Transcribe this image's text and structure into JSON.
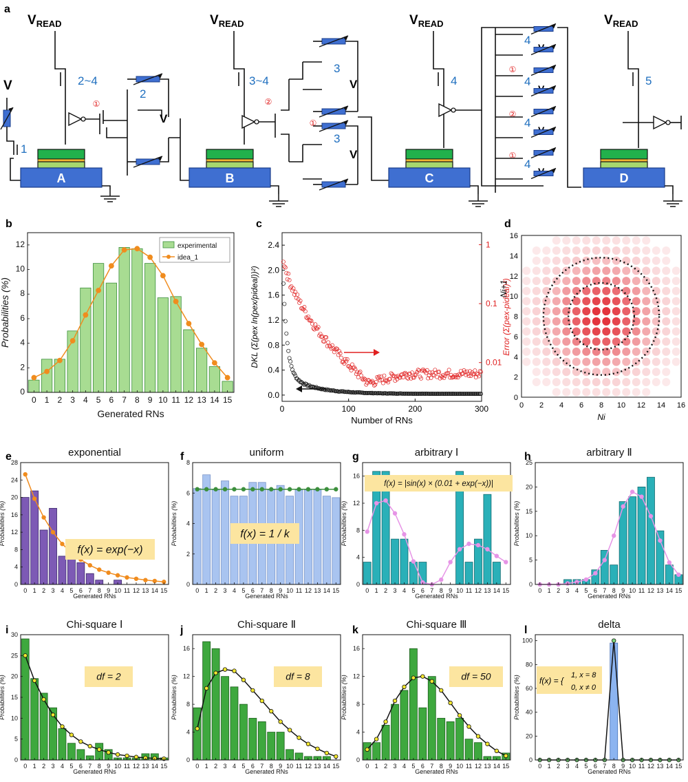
{
  "circuit": {
    "panel_letter": "a",
    "v_read": "V",
    "v_read_sub": "READ",
    "v_label": "V",
    "blocks": [
      "A",
      "B",
      "C",
      "D"
    ],
    "transistor_labels": [
      "1",
      "2~4",
      "2",
      "3~4",
      "3",
      "3",
      "4",
      "4",
      "4",
      "4",
      "4",
      "5"
    ],
    "node_markers": [
      "①",
      "②",
      "①",
      "①",
      "②",
      "①"
    ],
    "colors": {
      "block": "#3f6fd1",
      "stack_top": "#22b14c",
      "stack_mid": "#f2b632",
      "stack_low": "#a7d86e",
      "label_blue": "#1f6fbf",
      "marker_red": "#e02020"
    }
  },
  "chart_data": [
    {
      "id": "b",
      "type": "bar",
      "panel_letter": "b",
      "categories": [
        "0",
        "1",
        "2",
        "3",
        "4",
        "5",
        "6",
        "7",
        "8",
        "9",
        "10",
        "11",
        "12",
        "13",
        "14",
        "15"
      ],
      "series": [
        {
          "name": "experimental",
          "kind": "bar",
          "values": [
            1.0,
            2.7,
            2.7,
            5.0,
            8.5,
            10.5,
            8.9,
            11.8,
            11.7,
            10.5,
            7.7,
            7.8,
            5.1,
            3.6,
            2.1,
            0.9
          ]
        },
        {
          "name": "idea_1",
          "kind": "line",
          "values": [
            1.2,
            1.7,
            2.6,
            4.2,
            6.3,
            8.3,
            10.3,
            11.6,
            11.7,
            11.0,
            9.5,
            7.4,
            5.6,
            3.9,
            2.4,
            1.2
          ]
        }
      ],
      "xlabel": "Generated RNs",
      "ylabel": "Probabilities (%)",
      "ylim": [
        0,
        13
      ],
      "yticks": [
        "0",
        "2",
        "4",
        "6",
        "8",
        "10",
        "12"
      ],
      "legend": "top-right",
      "colors": {
        "bar": "#a8dc92",
        "bar_edge": "#3c8f3c",
        "line": "#f08c1e"
      }
    },
    {
      "id": "c",
      "type": "scatter",
      "panel_letter": "c",
      "xlabel": "Number of RNs",
      "ylabel_left": "DKL (Σ(pex ln(pex/pideal))²)",
      "ylabel_right": "Error (Σ(pex-pideal)²)",
      "xlim": [
        0,
        300
      ],
      "xticks": [
        "0",
        "100",
        "200",
        "300"
      ],
      "ylim_left": [
        -0.1,
        2.6
      ],
      "yticks_left": [
        "0.0",
        "0.4",
        "0.8",
        "1.2",
        "1.6",
        "2.0",
        "2.4"
      ],
      "yscale_right": "log",
      "yticks_right": [
        "0.01",
        "0.1",
        "1"
      ],
      "series": [
        {
          "name": "DKL",
          "axis": "left",
          "color": "#111111",
          "decay": {
            "a0": 2.0,
            "tau": 6,
            "a1": 0.35,
            "tau1": 40,
            "floor": 0.02
          }
        },
        {
          "name": "Error",
          "axis": "right",
          "color": "#e02020",
          "decay": {
            "start": 1.0,
            "plateau_min": 0.0045,
            "plateau": 0.0065
          }
        }
      ]
    },
    {
      "id": "d",
      "type": "heatmap",
      "panel_letter": "d",
      "xlabel": "Ni",
      "ylabel": "Ni+1",
      "xlim": [
        0,
        16
      ],
      "ylim": [
        0,
        16
      ],
      "xticks": [
        "0",
        "2",
        "4",
        "6",
        "8",
        "10",
        "12",
        "14",
        "16"
      ],
      "yticks": [
        "0",
        "2",
        "4",
        "6",
        "8",
        "10",
        "12",
        "14",
        "16"
      ],
      "center": [
        7.5,
        7.5
      ],
      "circle_radii": [
        3.3,
        5.8
      ],
      "color": "#e0202a"
    },
    {
      "id": "e",
      "type": "bar",
      "panel_letter": "e",
      "title": "exponential",
      "categories": [
        "0",
        "1",
        "2",
        "3",
        "4",
        "5",
        "6",
        "7",
        "8",
        "9",
        "10",
        "11",
        "12",
        "13",
        "14",
        "15"
      ],
      "series": [
        {
          "name": "",
          "kind": "bar",
          "values": [
            20,
            21.5,
            12.5,
            17.5,
            6.5,
            6.5,
            5,
            2.5,
            1,
            0,
            1,
            0,
            0,
            0,
            0,
            0
          ]
        },
        {
          "name": "",
          "kind": "line",
          "values": [
            25.3,
            19.7,
            15.4,
            12,
            9.3,
            7.3,
            5.7,
            4.4,
            3.4,
            2.7,
            2.1,
            1.6,
            1.3,
            1,
            0.8,
            0.6
          ]
        }
      ],
      "xlabel": "Generated RNs",
      "ylabel": "Probabilities (%)",
      "ylim": [
        0,
        28
      ],
      "yticks": [
        "0",
        "4",
        "8",
        "12",
        "16",
        "20",
        "24",
        "28"
      ],
      "formula": "f(x) = exp(−x)",
      "colors": {
        "bar": "#7d5ab5",
        "bar_edge": "#3d2a6b",
        "line": "#f08c1e"
      }
    },
    {
      "id": "f",
      "type": "bar",
      "panel_letter": "f",
      "title": "uniform",
      "categories": [
        "0",
        "1",
        "2",
        "3",
        "4",
        "5",
        "6",
        "7",
        "8",
        "9",
        "10",
        "11",
        "12",
        "13",
        "14",
        "15"
      ],
      "series": [
        {
          "name": "",
          "kind": "bar",
          "values": [
            6.3,
            7.2,
            6.2,
            6.8,
            5.8,
            5.8,
            6.7,
            6.7,
            6.2,
            6.5,
            5.8,
            6.2,
            6.2,
            6.2,
            5.8,
            5.7
          ]
        },
        {
          "name": "",
          "kind": "line",
          "values": [
            6.25,
            6.25,
            6.25,
            6.25,
            6.25,
            6.25,
            6.25,
            6.25,
            6.25,
            6.25,
            6.25,
            6.25,
            6.25,
            6.25,
            6.25,
            6.25
          ]
        }
      ],
      "xlabel": "Generated RNs",
      "ylabel": "Probabilities (%)",
      "ylim": [
        0,
        8
      ],
      "yticks": [
        "0",
        "2",
        "4",
        "6",
        "8"
      ],
      "formula": "f(x) = 1 / k",
      "colors": {
        "bar": "#a9c4f0",
        "bar_edge": "#7a95c8",
        "line": "#3c8f3c"
      }
    },
    {
      "id": "g",
      "type": "bar",
      "panel_letter": "g",
      "title": "arbitrary Ⅰ",
      "categories": [
        "0",
        "1",
        "2",
        "3",
        "4",
        "5",
        "6",
        "7",
        "8",
        "9",
        "10",
        "11",
        "12",
        "13",
        "14",
        "15"
      ],
      "series": [
        {
          "name": "",
          "kind": "bar",
          "values": [
            3.3,
            16.7,
            16.7,
            6.7,
            6.7,
            3.3,
            3.3,
            0,
            0,
            0,
            16.7,
            3.3,
            6.7,
            13.3,
            3.3,
            0
          ]
        },
        {
          "name": "",
          "kind": "line",
          "values": [
            7.8,
            12,
            12.4,
            10.5,
            7.4,
            3.4,
            0.3,
            0,
            0.7,
            3.3,
            5.2,
            6,
            5.8,
            5.2,
            4.2,
            3.3
          ]
        }
      ],
      "xlabel": "Generated RNs",
      "ylabel": "Probabilities (%)",
      "ylim": [
        0,
        18
      ],
      "yticks": [
        "0",
        "4",
        "8",
        "12",
        "16"
      ],
      "formula": "f(x) = |sin(x) × (0.01 + exp(−x))|",
      "colors": {
        "bar": "#2ab0b8",
        "bar_edge": "#136b70",
        "line": "#e694e6"
      }
    },
    {
      "id": "h",
      "type": "bar",
      "panel_letter": "h",
      "title": "arbitrary Ⅱ",
      "categories": [
        "0",
        "1",
        "2",
        "3",
        "4",
        "5",
        "6",
        "7",
        "8",
        "9",
        "10",
        "11",
        "12",
        "13",
        "14",
        "15"
      ],
      "series": [
        {
          "name": "",
          "kind": "bar",
          "values": [
            0,
            0,
            0,
            1,
            1,
            1,
            3,
            7,
            4,
            17,
            18,
            20,
            22,
            11,
            4,
            2
          ]
        },
        {
          "name": "",
          "kind": "line",
          "values": [
            0,
            0,
            0,
            0.2,
            0.5,
            1,
            2.3,
            5,
            10,
            16,
            19,
            18,
            14,
            9,
            4.5,
            2
          ]
        }
      ],
      "xlabel": "Generated RNs",
      "ylabel": "Probabilities (%)",
      "ylim": [
        0,
        25
      ],
      "yticks": [
        "0",
        "5",
        "10",
        "15",
        "20",
        "25"
      ],
      "colors": {
        "bar": "#2ab0b8",
        "bar_edge": "#136b70",
        "line": "#e694e6"
      }
    },
    {
      "id": "i",
      "type": "bar",
      "panel_letter": "i",
      "title": "Chi-square Ⅰ",
      "categories": [
        "0",
        "1",
        "2",
        "3",
        "4",
        "5",
        "6",
        "7",
        "8",
        "9",
        "10",
        "11",
        "12",
        "13",
        "14",
        "15"
      ],
      "series": [
        {
          "name": "",
          "kind": "bar",
          "values": [
            29,
            19.5,
            16,
            12.5,
            7.5,
            4,
            2.5,
            1,
            4,
            2.5,
            0.5,
            0.5,
            0.5,
            1.5,
            1.5,
            0.5
          ]
        },
        {
          "name": "",
          "kind": "line",
          "values": [
            25,
            19,
            14.5,
            10.8,
            8,
            6,
            4.4,
            3.3,
            2.5,
            1.8,
            1.3,
            1,
            0.7,
            0.5,
            0.4,
            0.3
          ]
        }
      ],
      "xlabel": "Generated RNs",
      "ylabel": "Probabilities (%)",
      "ylim": [
        0,
        30
      ],
      "yticks": [
        "0",
        "5",
        "10",
        "15",
        "20",
        "25",
        "30"
      ],
      "formula": "df = 2",
      "colors": {
        "bar": "#3ea83e",
        "bar_edge": "#1d5e1d",
        "line": "#111111",
        "marker": "#f2e630"
      }
    },
    {
      "id": "j",
      "type": "bar",
      "panel_letter": "j",
      "title": "Chi-square Ⅱ",
      "categories": [
        "0",
        "1",
        "2",
        "3",
        "4",
        "5",
        "6",
        "7",
        "8",
        "9",
        "10",
        "11",
        "12",
        "13",
        "14",
        "15"
      ],
      "series": [
        {
          "name": "",
          "kind": "bar",
          "values": [
            7.5,
            17,
            16,
            12,
            10.5,
            8,
            6,
            5.5,
            4,
            4,
            1.5,
            1,
            0.5,
            0.5,
            0.5,
            0
          ]
        },
        {
          "name": "",
          "kind": "line",
          "values": [
            4.5,
            10.3,
            12.5,
            13,
            12.8,
            11.5,
            10,
            8.5,
            7,
            5.5,
            4.3,
            3.2,
            2.3,
            1.6,
            1,
            0.5
          ]
        }
      ],
      "xlabel": "Generated RNs",
      "ylabel": "Probabilities (%)",
      "ylim": [
        0,
        18
      ],
      "yticks": [
        "0",
        "4",
        "8",
        "12",
        "16"
      ],
      "formula": "df = 8",
      "colors": {
        "bar": "#3ea83e",
        "bar_edge": "#1d5e1d",
        "line": "#111111",
        "marker": "#f2e630"
      }
    },
    {
      "id": "k",
      "type": "bar",
      "panel_letter": "k",
      "title": "Chi-square Ⅲ",
      "categories": [
        "0",
        "1",
        "2",
        "3",
        "4",
        "5",
        "6",
        "7",
        "8",
        "9",
        "10",
        "11",
        "12",
        "13",
        "14",
        "15"
      ],
      "series": [
        {
          "name": "",
          "kind": "bar",
          "values": [
            2.5,
            2.5,
            5,
            8,
            10,
            16,
            7.5,
            12,
            6,
            5.5,
            6,
            3,
            2.5,
            0.5,
            0.5,
            1
          ]
        },
        {
          "name": "",
          "kind": "line",
          "values": [
            1.5,
            3,
            5.5,
            8.5,
            10.5,
            11.8,
            12,
            11.3,
            10,
            8.2,
            6.4,
            4.8,
            3.4,
            2.3,
            1.3,
            0.6
          ]
        }
      ],
      "xlabel": "Generated RNs",
      "ylabel": "Probabilities (%)",
      "ylim": [
        0,
        18
      ],
      "yticks": [
        "0",
        "4",
        "8",
        "12",
        "16"
      ],
      "formula": "df = 50",
      "colors": {
        "bar": "#3ea83e",
        "bar_edge": "#1d5e1d",
        "line": "#111111",
        "marker": "#f2e630"
      }
    },
    {
      "id": "l",
      "type": "bar",
      "panel_letter": "l",
      "title": "delta",
      "categories": [
        "0",
        "1",
        "2",
        "3",
        "4",
        "5",
        "6",
        "7",
        "8",
        "9",
        "10",
        "11",
        "12",
        "13",
        "14",
        "15"
      ],
      "series": [
        {
          "name": "",
          "kind": "bar",
          "values": [
            0,
            0,
            0,
            0,
            0,
            0,
            0,
            0,
            98,
            0,
            0,
            0,
            0,
            0,
            0,
            0
          ]
        },
        {
          "name": "",
          "kind": "line",
          "values": [
            0,
            0,
            0,
            0,
            0,
            0,
            0,
            0,
            100,
            0,
            0,
            0,
            0,
            0,
            0,
            0
          ]
        }
      ],
      "xlabel": "Generated RNs",
      "ylabel": "Probabilities (%)",
      "ylim": [
        0,
        105
      ],
      "yticks": [
        "0",
        "20",
        "40",
        "60",
        "80",
        "100"
      ],
      "formula": "f(x) = { 1, x = 8 ; 0, x ≠ 0 }",
      "formula_lines": [
        "1, x = 8",
        "0, x ≠ 0"
      ],
      "colors": {
        "bar": "#8cb4f0",
        "bar_edge": "#4a74b8",
        "line": "#111111",
        "marker": "#7ed87e"
      }
    }
  ]
}
